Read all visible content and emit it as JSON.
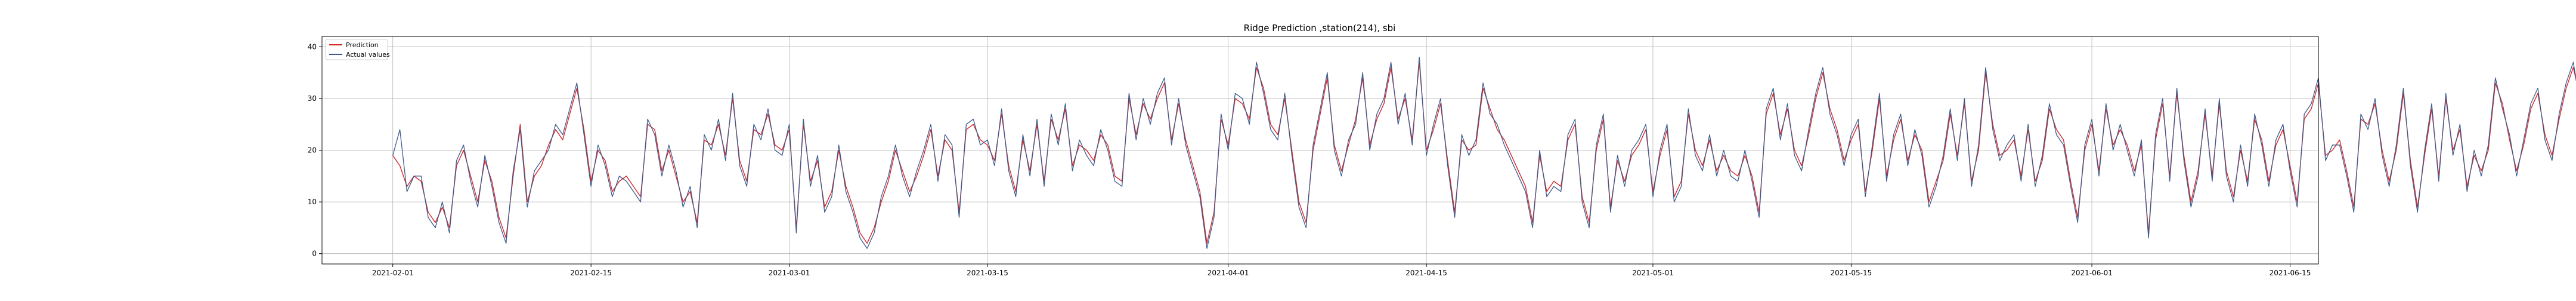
{
  "chart_data": {
    "type": "line",
    "title": "Ridge Prediction ,station(214), sbi",
    "xlabel": "",
    "ylabel": "",
    "x_range": [
      "2021-01-27",
      "2021-06-17"
    ],
    "ylim": [
      -2,
      42
    ],
    "grid": true,
    "legend": "top-left",
    "x_ticks": [
      "2021-02-01",
      "2021-02-15",
      "2021-03-01",
      "2021-03-15",
      "2021-04-01",
      "2021-04-15",
      "2021-05-01",
      "2021-05-15",
      "2021-06-01",
      "2021-06-15"
    ],
    "y_ticks": [
      0,
      10,
      20,
      30,
      40
    ],
    "sample_interval_hours": 12,
    "series": [
      {
        "name": "Prediction",
        "color": "#d62728",
        "start": "2021-02-01",
        "values": [
          19,
          17,
          13,
          15,
          14,
          8,
          6,
          9,
          5,
          17,
          20,
          15,
          10,
          18,
          14,
          7,
          3,
          15,
          25,
          10,
          15,
          17,
          21,
          24,
          22,
          27,
          32,
          24,
          14,
          20,
          18,
          12,
          14,
          15,
          13,
          11,
          25,
          24,
          16,
          20,
          15,
          10,
          12,
          6,
          22,
          21,
          25,
          19,
          30,
          18,
          14,
          24,
          23,
          27,
          21,
          20,
          24,
          5,
          25,
          14,
          18,
          9,
          12,
          20,
          13,
          9,
          4,
          2,
          5,
          10,
          14,
          20,
          16,
          12,
          15,
          19,
          24,
          15,
          22,
          20,
          8,
          24,
          25,
          22,
          21,
          18,
          27,
          17,
          12,
          22,
          16,
          25,
          14,
          26,
          22,
          28,
          17,
          21,
          20,
          18,
          23,
          21,
          15,
          14,
          30,
          23,
          29,
          26,
          30,
          33,
          22,
          29,
          22,
          17,
          12,
          2,
          8,
          26,
          21,
          30,
          29,
          26,
          36,
          32,
          25,
          23,
          30,
          20,
          10,
          6,
          20,
          27,
          34,
          21,
          16,
          21,
          26,
          34,
          21,
          26,
          29,
          36,
          26,
          30,
          22,
          37,
          20,
          24,
          29,
          18,
          8,
          22,
          20,
          21,
          32,
          28,
          24,
          22,
          19,
          16,
          13,
          6,
          19,
          12,
          14,
          13,
          22,
          25,
          11,
          6,
          20,
          26,
          9,
          18,
          14,
          19,
          21,
          24,
          12,
          19,
          24,
          11,
          14,
          27,
          20,
          17,
          22,
          16,
          19,
          16,
          15,
          19,
          15,
          8,
          27,
          31,
          23,
          28,
          20,
          17,
          23,
          30,
          35,
          28,
          24,
          18,
          22,
          25,
          12,
          20,
          30,
          15,
          22,
          26,
          18,
          23,
          20,
          10,
          14,
          18,
          27,
          19,
          29,
          14,
          20,
          35,
          25,
          19,
          20,
          22,
          15,
          24,
          14,
          18,
          28,
          24,
          22,
          14,
          7,
          20,
          25,
          16,
          28,
          21,
          24,
          21,
          16,
          21,
          4,
          22,
          29,
          15,
          31,
          19,
          10,
          16,
          27,
          15,
          29,
          16,
          11,
          20,
          14,
          26,
          22,
          14,
          21,
          24,
          17,
          10,
          26,
          28,
          33,
          19,
          20,
          22,
          16,
          9,
          26,
          25,
          29,
          20,
          14,
          20,
          31,
          18,
          9,
          19,
          28,
          15,
          30,
          20,
          24,
          13,
          19,
          16,
          20,
          33,
          29,
          22,
          16,
          21,
          28,
          31,
          23,
          19,
          26,
          32,
          36,
          30,
          34,
          21,
          20,
          28,
          25,
          26,
          16,
          23,
          12,
          6,
          20,
          7,
          27,
          34,
          30,
          31,
          28,
          26,
          22,
          23,
          30,
          36,
          28,
          32,
          38,
          35,
          30,
          31,
          28,
          33,
          27,
          29,
          26,
          25,
          18,
          15,
          22,
          26,
          20,
          24,
          30,
          28,
          33,
          26,
          14,
          18,
          28,
          30,
          24,
          20,
          16,
          23,
          29,
          21,
          19,
          27,
          13,
          20,
          25,
          22,
          16,
          17,
          23,
          30,
          27,
          32,
          22,
          20,
          17
        ],
        "values_note": ""
      },
      {
        "name": "Actual values",
        "color": "#3b5b8f",
        "start": "2021-02-01",
        "values": [
          19,
          24,
          12,
          15,
          15,
          7,
          5,
          10,
          4,
          18,
          21,
          14,
          9,
          19,
          13,
          6,
          2,
          16,
          24,
          9,
          16,
          18,
          20,
          25,
          23,
          28,
          33,
          23,
          13,
          21,
          17,
          11,
          15,
          14,
          12,
          10,
          26,
          23,
          15,
          21,
          16,
          9,
          13,
          5,
          23,
          20,
          26,
          18,
          31,
          17,
          13,
          25,
          22,
          28,
          20,
          19,
          25,
          4,
          26,
          13,
          19,
          8,
          11,
          21,
          12,
          8,
          3,
          1,
          4,
          11,
          15,
          21,
          15,
          11,
          16,
          20,
          25,
          14,
          23,
          21,
          7,
          25,
          26,
          21,
          22,
          17,
          28,
          16,
          11,
          23,
          15,
          26,
          13,
          27,
          21,
          29,
          16,
          22,
          19,
          17,
          24,
          20,
          14,
          13,
          31,
          22,
          30,
          25,
          31,
          34,
          21,
          30,
          21,
          16,
          11,
          1,
          7,
          27,
          20,
          31,
          30,
          25,
          37,
          31,
          24,
          22,
          31,
          19,
          9,
          5,
          21,
          28,
          35,
          20,
          15,
          22,
          25,
          35,
          20,
          27,
          30,
          37,
          25,
          31,
          21,
          38,
          19,
          25,
          30,
          17,
          7,
          23,
          19,
          22,
          33,
          27,
          25,
          21,
          18,
          15,
          12,
          5,
          20,
          11,
          13,
          12,
          23,
          26,
          10,
          5,
          21,
          27,
          8,
          19,
          13,
          20,
          22,
          25,
          11,
          20,
          25,
          10,
          13,
          28,
          19,
          16,
          23,
          15,
          20,
          15,
          14,
          20,
          14,
          7,
          28,
          32,
          22,
          29,
          19,
          16,
          24,
          31,
          36,
          27,
          23,
          17,
          23,
          26,
          11,
          21,
          31,
          14,
          23,
          27,
          17,
          24,
          19,
          9,
          13,
          19,
          28,
          18,
          30,
          13,
          21,
          36,
          24,
          18,
          21,
          23,
          14,
          25,
          13,
          19,
          29,
          23,
          21,
          13,
          6,
          21,
          26,
          15,
          29,
          20,
          25,
          20,
          15,
          22,
          3,
          23,
          30,
          14,
          32,
          18,
          9,
          15,
          28,
          14,
          30,
          15,
          10,
          21,
          13,
          27,
          21,
          13,
          22,
          25,
          16,
          9,
          27,
          29,
          34,
          18,
          21,
          21,
          15,
          8,
          27,
          24,
          30,
          19,
          13,
          21,
          32,
          17,
          8,
          20,
          29,
          14,
          31,
          19,
          25,
          12,
          20,
          15,
          21,
          34,
          28,
          23,
          15,
          22,
          29,
          32,
          22,
          18,
          27,
          33,
          37,
          29,
          35,
          20,
          21,
          29,
          24,
          27,
          15,
          24,
          11,
          5,
          21,
          6,
          28,
          35,
          29,
          32,
          27,
          25,
          23,
          22,
          31,
          37,
          27,
          33,
          39,
          34,
          29,
          32,
          27,
          34,
          26,
          30,
          25,
          26,
          17,
          14,
          23,
          27,
          19,
          25,
          31,
          27,
          34,
          25,
          13,
          19,
          29,
          31,
          23,
          19,
          15,
          24,
          30,
          20,
          18,
          28,
          12,
          21,
          26,
          21,
          15,
          16,
          24,
          31,
          26,
          33,
          23,
          19,
          18
        ],
        "values_note": ""
      }
    ]
  }
}
